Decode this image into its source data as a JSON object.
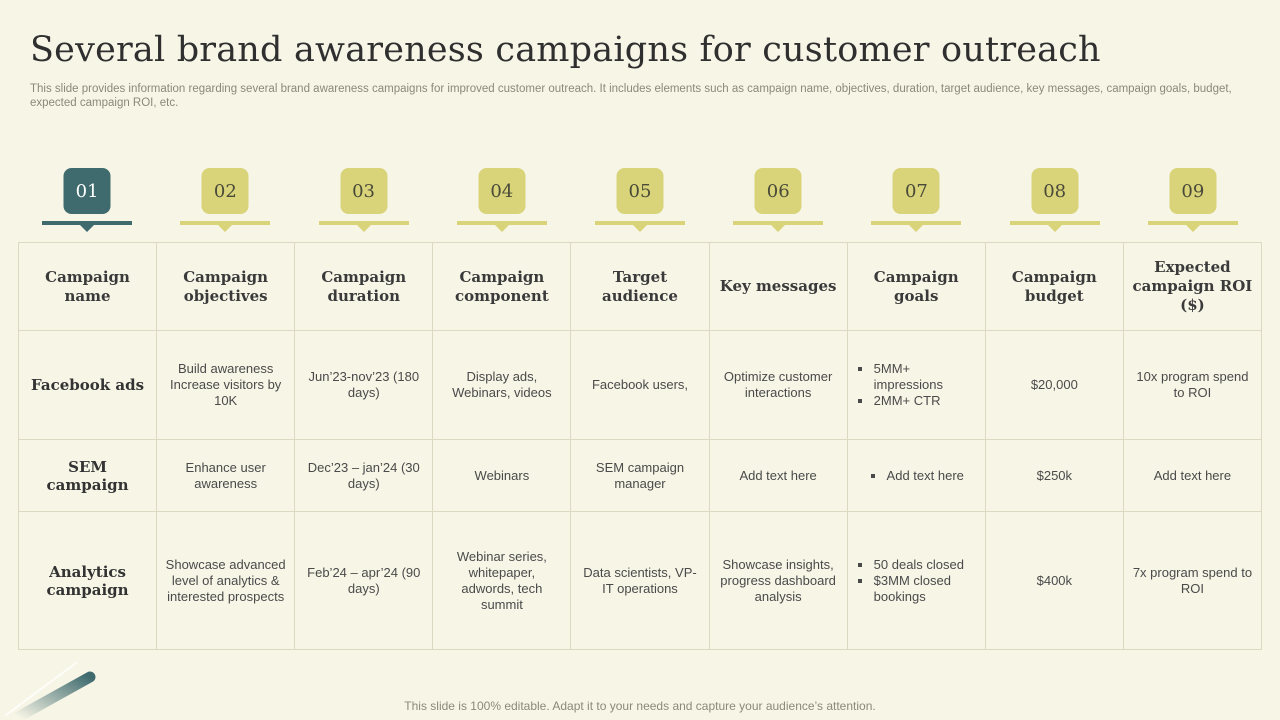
{
  "header": {
    "title": "Several brand awareness campaigns for customer outreach",
    "subtitle": "This slide provides information regarding several brand awareness campaigns for improved customer outreach. It includes elements such as campaign name, objectives, duration, target audience, key messages, campaign goals, budget, expected campaign ROI, etc."
  },
  "steps": [
    "01",
    "02",
    "03",
    "04",
    "05",
    "06",
    "07",
    "08",
    "09"
  ],
  "active_step": "01",
  "colors": {
    "active": "#3f6b6e",
    "inactive": "#d9d47a",
    "background": "#f7f5e6"
  },
  "table": {
    "headers": [
      "Campaign name",
      "Campaign objectives",
      "Campaign duration",
      "Campaign component",
      "Target audience",
      "Key messages",
      "Campaign goals",
      "Campaign budget",
      "Expected campaign ROI ($)"
    ],
    "rows": [
      {
        "name": "Facebook ads",
        "objectives": "Build awareness Increase visitors by 10K",
        "duration": "Jun’23-nov’23 (180 days)",
        "component": "Display ads, Webinars, videos",
        "audience": "Facebook users,",
        "messages": "Optimize customer interactions",
        "goals": [
          "5MM+ impressions",
          "2MM+  CTR"
        ],
        "budget": "$20,000",
        "roi": "10x program spend to ROI"
      },
      {
        "name": "SEM campaign",
        "objectives": "Enhance user awareness",
        "duration": "Dec’23 – jan’24 (30 days)",
        "component": "Webinars",
        "audience": "SEM campaign manager",
        "messages": "Add text here",
        "goals": [
          "Add text here"
        ],
        "budget": "$250k",
        "roi": "Add text here"
      },
      {
        "name": "Analytics campaign",
        "objectives": "Showcase advanced level of analytics & interested prospects",
        "duration": "Feb’24 – apr’24 (90 days)",
        "component": "Webinar series, whitepaper, adwords, tech summit",
        "audience": "Data scientists, VP-IT operations",
        "messages": "Showcase insights, progress dashboard analysis",
        "goals": [
          "50 deals closed",
          "$3MM closed bookings"
        ],
        "budget": "$400k",
        "roi": "7x program spend to ROI"
      }
    ]
  },
  "footer": "This slide is 100% editable. Adapt it to your needs and capture your audience’s attention."
}
